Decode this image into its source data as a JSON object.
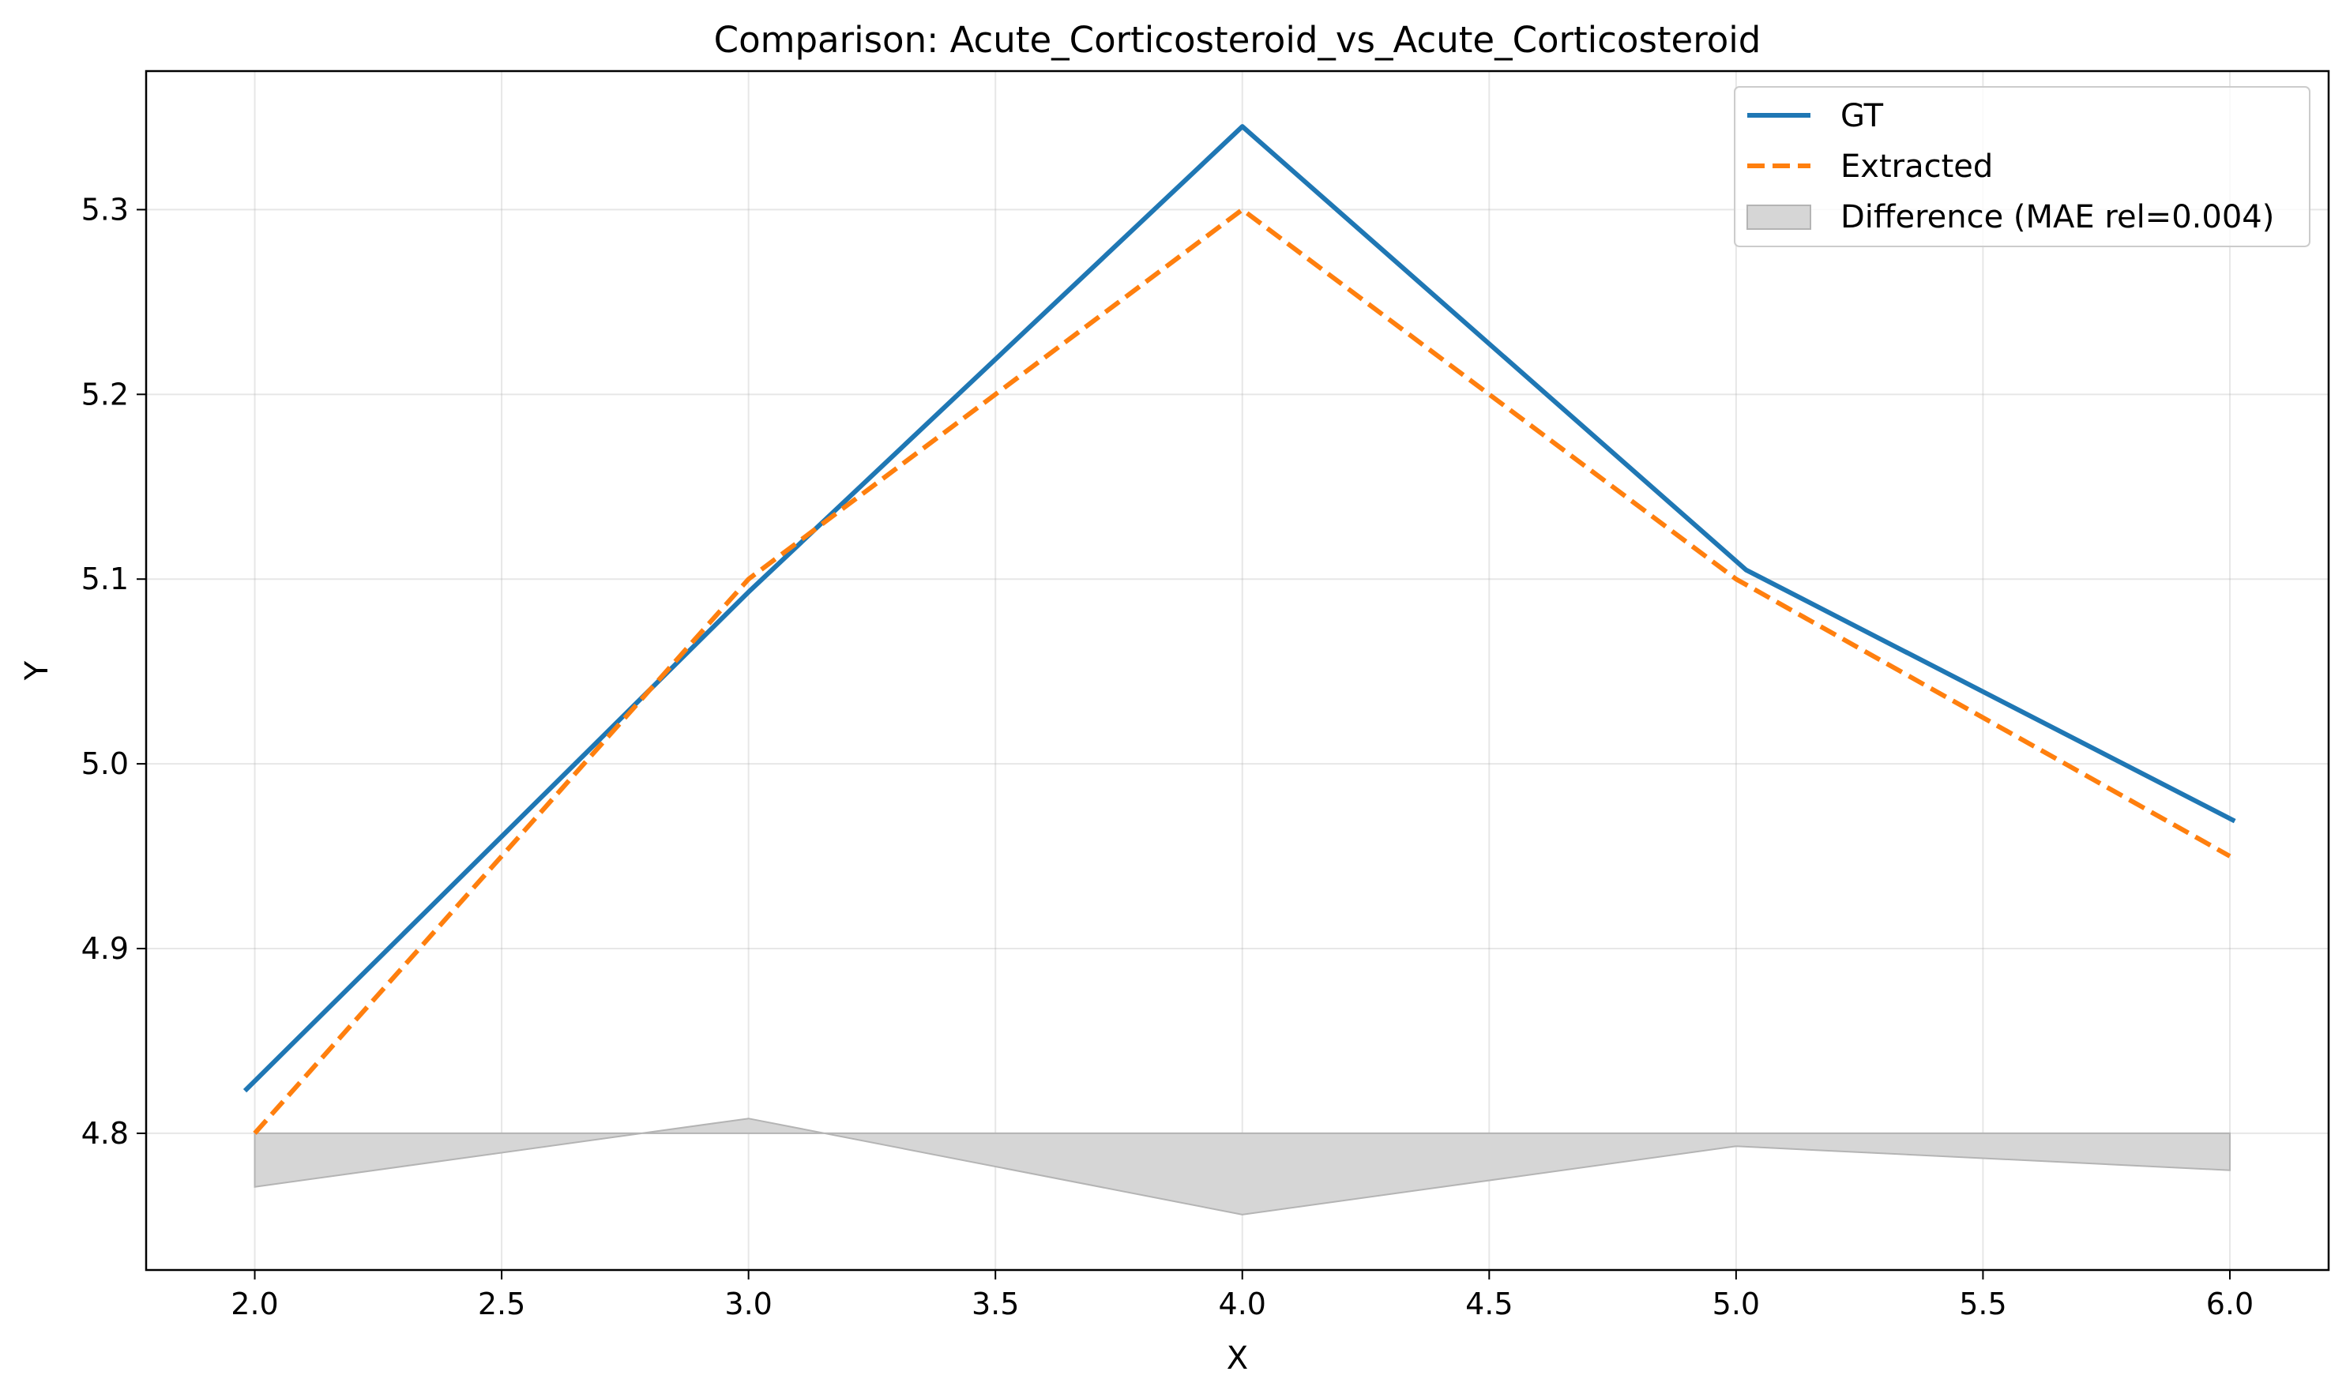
{
  "chart_data": {
    "type": "line",
    "title": "Comparison: Acute_Corticosteroid_vs_Acute_Corticosteroid",
    "xlabel": "X",
    "ylabel": "Y",
    "xlim": [
      1.78,
      6.2
    ],
    "ylim": [
      4.726,
      5.375
    ],
    "xticks": [
      2.0,
      2.5,
      3.0,
      3.5,
      4.0,
      4.5,
      5.0,
      5.5,
      6.0
    ],
    "xtick_labels": [
      "2.0",
      "2.5",
      "3.0",
      "3.5",
      "4.0",
      "4.5",
      "5.0",
      "5.5",
      "6.0"
    ],
    "yticks": [
      4.8,
      4.9,
      5.0,
      5.1,
      5.2,
      5.3
    ],
    "ytick_labels": [
      "4.8",
      "4.9",
      "5.0",
      "5.1",
      "5.2",
      "5.3"
    ],
    "grid": true,
    "legend_position": "top-right",
    "series": [
      {
        "name": "GT",
        "style": "solid",
        "color": "#1f77b4",
        "x": [
          1.98,
          3.0,
          4.0,
          5.02,
          6.01
        ],
        "y": [
          4.823,
          5.093,
          5.345,
          5.105,
          4.969
        ]
      },
      {
        "name": "Extracted",
        "style": "dashed",
        "color": "#ff7f0e",
        "x": [
          2.0,
          3.0,
          4.0,
          5.0,
          6.0
        ],
        "y": [
          4.8,
          5.1,
          5.3,
          5.1,
          4.95
        ]
      }
    ],
    "difference": {
      "name": "Difference (MAE rel=0.004)",
      "color": "#d6d6d6",
      "edge_color": "#b4b4b4",
      "baseline": 4.8,
      "x": [
        2.0,
        3.0,
        4.0,
        5.0,
        6.0
      ],
      "y": [
        4.771,
        4.808,
        4.756,
        4.793,
        4.78
      ]
    }
  }
}
